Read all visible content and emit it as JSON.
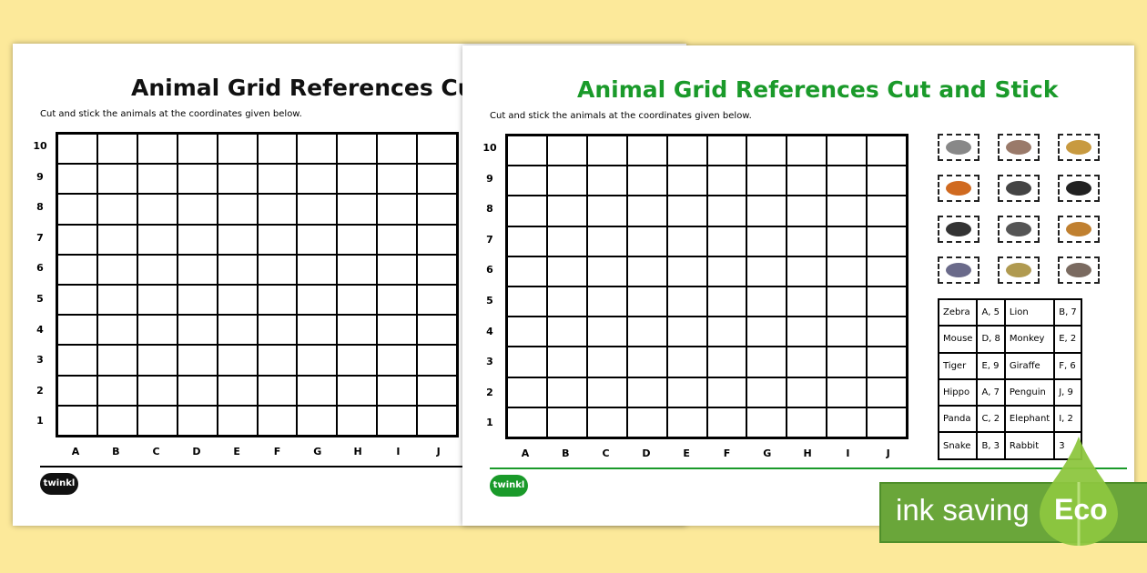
{
  "worksheet": {
    "title": "Animal Grid References Cut and Stick",
    "title_truncated": "Animal Grid References Cut a",
    "subtitle": "Cut and stick the animals at the coordinates given below.",
    "row_labels": [
      "10",
      "9",
      "8",
      "7",
      "6",
      "5",
      "4",
      "3",
      "2",
      "1"
    ],
    "column_labels": [
      "A",
      "B",
      "C",
      "D",
      "E",
      "F",
      "G",
      "H",
      "I",
      "J"
    ],
    "logo_text": "twinkl"
  },
  "left_version": {
    "accent": "#000000"
  },
  "right_version": {
    "accent": "#1a9a2a"
  },
  "animal_cards": [
    {
      "icon": "zebra-icon",
      "color": "#888"
    },
    {
      "icon": "mouse-icon",
      "color": "#9a7a6a"
    },
    {
      "icon": "lion-icon",
      "color": "#c89a40"
    },
    {
      "icon": "tiger-icon",
      "color": "#d06a20"
    },
    {
      "icon": "rabbit-icon",
      "color": "#444"
    },
    {
      "icon": "gorilla-icon",
      "color": "#222"
    },
    {
      "icon": "panda-icon",
      "color": "#333"
    },
    {
      "icon": "penguin-icon",
      "color": "#555"
    },
    {
      "icon": "giraffe-icon",
      "color": "#c08030"
    },
    {
      "icon": "hippo-icon",
      "color": "#6a6a8a"
    },
    {
      "icon": "snake-icon",
      "color": "#b09a50"
    },
    {
      "icon": "elephant-icon",
      "color": "#7a6a60"
    }
  ],
  "coordinates_table": [
    [
      "Zebra",
      "A, 5",
      "Lion",
      "B, 7"
    ],
    [
      "Mouse",
      "D, 8",
      "Monkey",
      "E, 2"
    ],
    [
      "Tiger",
      "E, 9",
      "Giraffe",
      "F, 6"
    ],
    [
      "Hippo",
      "A, 7",
      "Penguin",
      "J, 9"
    ],
    [
      "Panda",
      "C, 2",
      "Elephant",
      "I, 2"
    ],
    [
      "Snake",
      "B, 3",
      "Rabbit",
      "3"
    ]
  ],
  "badge": {
    "text": "ink saving",
    "leaf_text": "Eco",
    "color": "#6aa63a",
    "leaf_color": "#8dc63f"
  }
}
